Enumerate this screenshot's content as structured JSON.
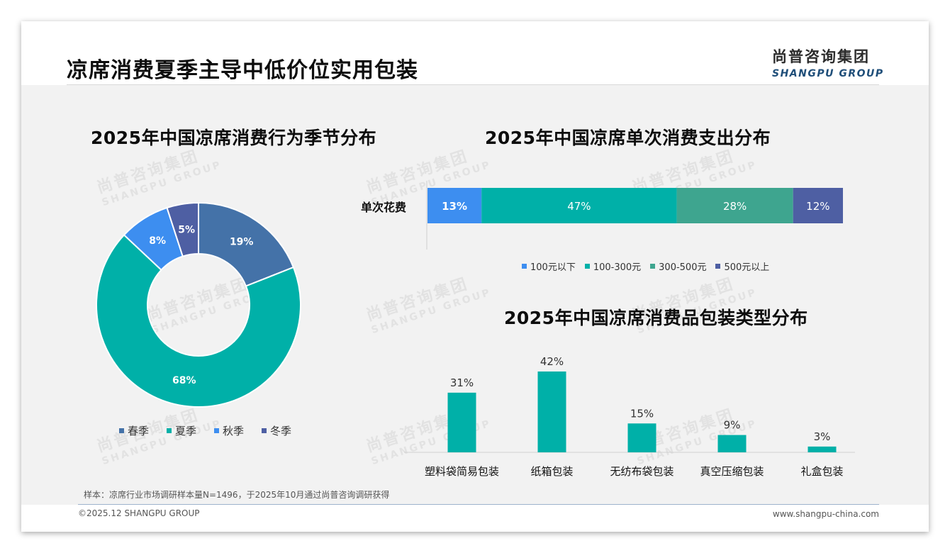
{
  "header": {
    "title": "凉席消费夏季主导中低价位实用包装",
    "logo_cn": "尚普咨询集团",
    "logo_en": "SHANGPU GROUP"
  },
  "watermark": {
    "cn": "尚普咨询集团",
    "en": "SHANGPU GROUP"
  },
  "chart_data": [
    {
      "type": "pie",
      "variant": "donut",
      "title": "2025年中国凉席消费行为季节分布",
      "categories": [
        "春季",
        "夏季",
        "秋季",
        "冬季"
      ],
      "values": [
        19,
        68,
        8,
        5
      ],
      "labels": [
        "19%",
        "68%",
        "8%",
        "5%"
      ],
      "colors": [
        "#4472a8",
        "#00b0a8",
        "#3d8ef0",
        "#4e5fa3"
      ],
      "legend": "bottom"
    },
    {
      "type": "bar",
      "orientation": "horizontal",
      "stacked": true,
      "title": "2025年中国凉席单次消费支出分布",
      "categories": [
        "单次花费"
      ],
      "series": [
        {
          "name": "100元以下",
          "values": [
            13
          ],
          "label": "13%",
          "color": "#3d8ef0"
        },
        {
          "name": "100-300元",
          "values": [
            47
          ],
          "label": "47%",
          "color": "#00b0a8"
        },
        {
          "name": "300-500元",
          "values": [
            28
          ],
          "label": "28%",
          "color": "#3ea58f"
        },
        {
          "name": "500元以上",
          "values": [
            12
          ],
          "label": "12%",
          "color": "#4e5fa3"
        }
      ],
      "legend": "bottom"
    },
    {
      "type": "bar",
      "title": "2025年中国凉席消费品包装类型分布",
      "categories": [
        "塑料袋简易包装",
        "纸箱包装",
        "无纺布袋包装",
        "真空压缩包装",
        "礼盒包装"
      ],
      "values": [
        31,
        42,
        15,
        9,
        3
      ],
      "labels": [
        "31%",
        "42%",
        "15%",
        "9%",
        "3%"
      ],
      "color": "#00b0a8"
    }
  ],
  "footer": {
    "note": "样本：凉席行业市场调研样本量N=1496，于2025年10月通过尚普咨询调研获得",
    "copyright": "©2025.12 SHANGPU GROUP",
    "website": "www.shangpu-china.com"
  }
}
